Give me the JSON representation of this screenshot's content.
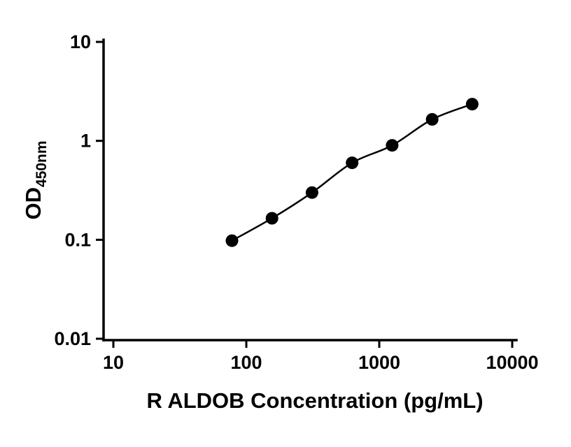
{
  "chart_data": {
    "type": "line",
    "title": "",
    "xlabel": "R ALDOB Concentration (pg/mL)",
    "ylabel": "OD450nm",
    "ylabel_parts": {
      "main": "OD",
      "sub": "450nm"
    },
    "x_scale": "log",
    "y_scale": "log",
    "xlim": [
      10,
      10000
    ],
    "ylim": [
      0.01,
      10
    ],
    "x_ticks": [
      10,
      100,
      1000,
      10000
    ],
    "x_tick_labels": [
      "10",
      "100",
      "1000",
      "10000"
    ],
    "y_ticks": [
      0.01,
      0.1,
      1,
      10
    ],
    "y_tick_labels": [
      "0.01",
      "0.1",
      "1",
      "10"
    ],
    "grid": false,
    "legend": "none",
    "series": [
      {
        "marker": "filled-circle",
        "color": "#000000",
        "x": [
          78,
          156,
          312,
          625,
          1250,
          2500,
          5000
        ],
        "y": [
          0.098,
          0.165,
          0.3,
          0.6,
          0.9,
          1.65,
          2.35
        ]
      }
    ]
  },
  "colors": {
    "axis": "#000000",
    "background": "#ffffff"
  }
}
